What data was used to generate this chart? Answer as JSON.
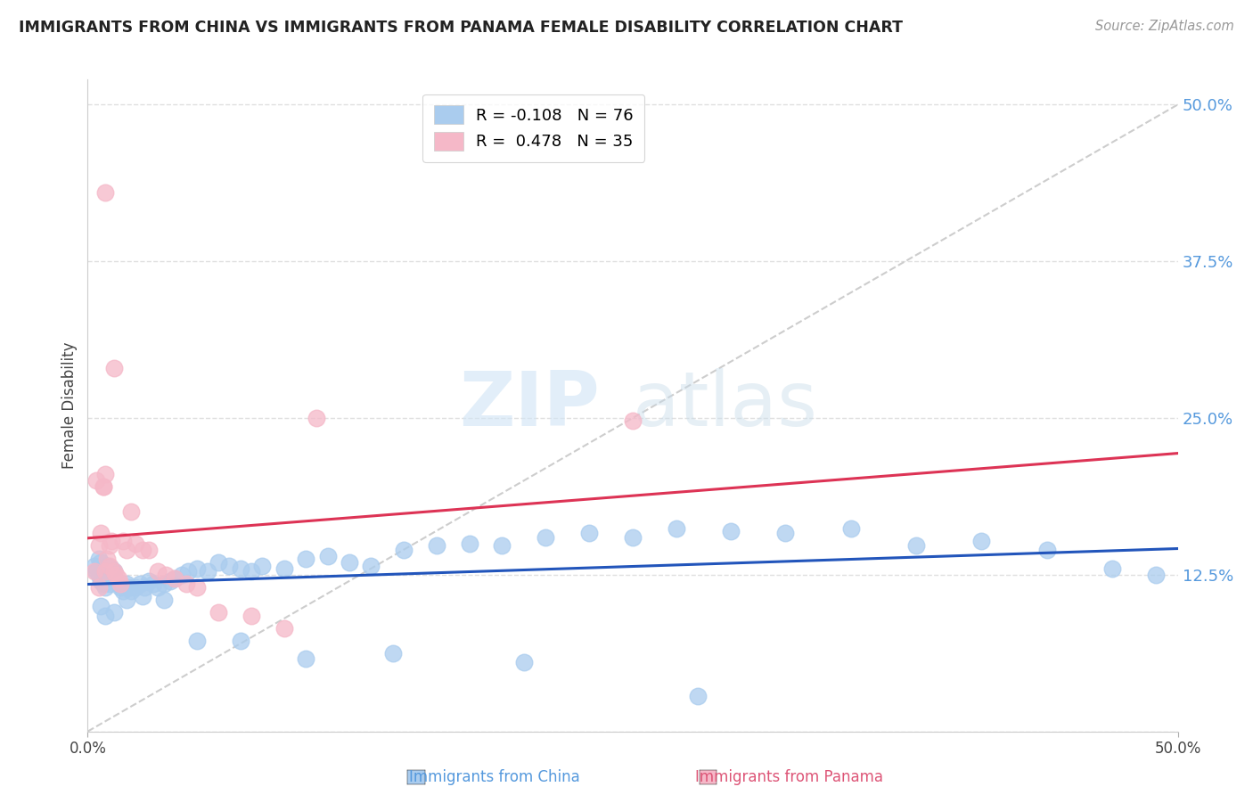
{
  "title": "IMMIGRANTS FROM CHINA VS IMMIGRANTS FROM PANAMA FEMALE DISABILITY CORRELATION CHART",
  "source": "Source: ZipAtlas.com",
  "ylabel": "Female Disability",
  "watermark_zip": "ZIP",
  "watermark_atlas": "atlas",
  "xlim": [
    0.0,
    0.5
  ],
  "ylim": [
    0.0,
    0.52
  ],
  "yticks": [
    0.0,
    0.125,
    0.25,
    0.375,
    0.5
  ],
  "ytick_labels": [
    "",
    "12.5%",
    "25.0%",
    "37.5%",
    "50.0%"
  ],
  "china_color": "#aaccee",
  "china_edge_color": "#aaccee",
  "china_line_color": "#2255bb",
  "panama_color": "#f5b8c8",
  "panama_edge_color": "#f5b8c8",
  "panama_line_color": "#dd3355",
  "diagonal_color": "#c8c8c8",
  "legend_china_r": "-0.108",
  "legend_china_n": "76",
  "legend_panama_r": "0.478",
  "legend_panama_n": "35",
  "china_scatter_x": [
    0.003,
    0.004,
    0.005,
    0.005,
    0.006,
    0.006,
    0.007,
    0.007,
    0.008,
    0.008,
    0.009,
    0.009,
    0.01,
    0.01,
    0.011,
    0.011,
    0.012,
    0.012,
    0.013,
    0.014,
    0.015,
    0.016,
    0.018,
    0.019,
    0.02,
    0.022,
    0.024,
    0.026,
    0.028,
    0.03,
    0.032,
    0.035,
    0.038,
    0.04,
    0.043,
    0.046,
    0.05,
    0.055,
    0.06,
    0.065,
    0.07,
    0.075,
    0.08,
    0.09,
    0.1,
    0.11,
    0.12,
    0.13,
    0.145,
    0.16,
    0.175,
    0.19,
    0.21,
    0.23,
    0.25,
    0.27,
    0.295,
    0.32,
    0.35,
    0.38,
    0.41,
    0.44,
    0.47,
    0.49,
    0.006,
    0.008,
    0.012,
    0.018,
    0.025,
    0.035,
    0.05,
    0.07,
    0.1,
    0.14,
    0.2,
    0.28
  ],
  "china_scatter_y": [
    0.132,
    0.128,
    0.125,
    0.138,
    0.12,
    0.135,
    0.118,
    0.13,
    0.115,
    0.128,
    0.122,
    0.132,
    0.118,
    0.128,
    0.125,
    0.13,
    0.122,
    0.128,
    0.12,
    0.118,
    0.115,
    0.112,
    0.118,
    0.115,
    0.112,
    0.115,
    0.118,
    0.115,
    0.12,
    0.118,
    0.115,
    0.118,
    0.12,
    0.122,
    0.125,
    0.128,
    0.13,
    0.128,
    0.135,
    0.132,
    0.13,
    0.128,
    0.132,
    0.13,
    0.138,
    0.14,
    0.135,
    0.132,
    0.145,
    0.148,
    0.15,
    0.148,
    0.155,
    0.158,
    0.155,
    0.162,
    0.16,
    0.158,
    0.162,
    0.148,
    0.152,
    0.145,
    0.13,
    0.125,
    0.1,
    0.092,
    0.095,
    0.105,
    0.108,
    0.105,
    0.072,
    0.072,
    0.058,
    0.062,
    0.055,
    0.028
  ],
  "panama_scatter_x": [
    0.003,
    0.004,
    0.005,
    0.005,
    0.006,
    0.007,
    0.007,
    0.008,
    0.008,
    0.009,
    0.01,
    0.01,
    0.011,
    0.012,
    0.013,
    0.014,
    0.015,
    0.016,
    0.018,
    0.02,
    0.022,
    0.025,
    0.028,
    0.032,
    0.036,
    0.04,
    0.045,
    0.05,
    0.06,
    0.075,
    0.09,
    0.105,
    0.008,
    0.012,
    0.25
  ],
  "panama_scatter_y": [
    0.128,
    0.2,
    0.148,
    0.115,
    0.158,
    0.195,
    0.195,
    0.205,
    0.128,
    0.138,
    0.148,
    0.132,
    0.152,
    0.128,
    0.125,
    0.122,
    0.118,
    0.152,
    0.145,
    0.175,
    0.15,
    0.145,
    0.145,
    0.128,
    0.125,
    0.122,
    0.118,
    0.115,
    0.095,
    0.092,
    0.082,
    0.25,
    0.43,
    0.29,
    0.248
  ],
  "background_color": "#ffffff",
  "grid_color": "#e0e0e0",
  "right_tick_color": "#5599dd",
  "bottom_label_china_color": "#5599dd",
  "bottom_label_panama_color": "#dd5577"
}
